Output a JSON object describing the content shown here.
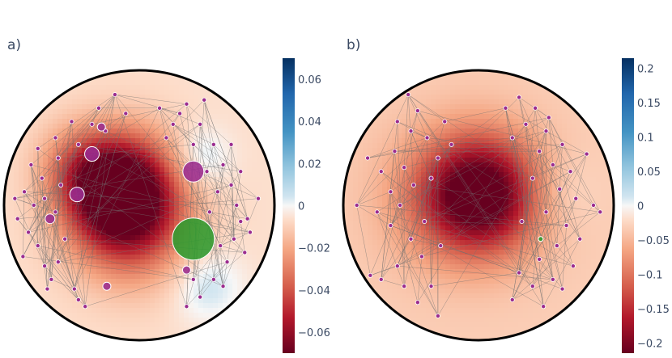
{
  "chart_data": [
    {
      "type": "heatmap",
      "panel_label": "a)",
      "colormap": "RdBu",
      "colorbar": {
        "range": [
          -0.07,
          0.07
        ],
        "ticks": [
          {
            "value": 0.06,
            "label": "0.06"
          },
          {
            "value": 0.04,
            "label": "0.04"
          },
          {
            "value": 0.02,
            "label": "0.02"
          },
          {
            "value": 0,
            "label": "0"
          },
          {
            "value": -0.02,
            "label": "−0.02"
          },
          {
            "value": -0.04,
            "label": "−0.04"
          },
          {
            "value": -0.06,
            "label": "−0.06"
          }
        ]
      },
      "field_background": -0.006,
      "field_blobs": [
        {
          "x": -0.15,
          "y": 0.12,
          "sigma": 0.28,
          "value": -0.078
        },
        {
          "x": -0.05,
          "y": -0.18,
          "sigma": 0.3,
          "value": -0.03
        },
        {
          "x": -0.45,
          "y": 0.3,
          "sigma": 0.2,
          "value": -0.015
        },
        {
          "x": 0.45,
          "y": 0.35,
          "sigma": 0.15,
          "value": 0.012
        },
        {
          "x": 0.5,
          "y": -0.6,
          "sigma": 0.18,
          "value": 0.012
        }
      ],
      "nodes_left": [
        [
          -0.75,
          0.42
        ],
        [
          -0.8,
          0.3
        ],
        [
          -0.72,
          0.2
        ],
        [
          -0.85,
          0.1
        ],
        [
          -0.78,
          0.0
        ],
        [
          -0.9,
          -0.1
        ],
        [
          -0.82,
          -0.2
        ],
        [
          -0.75,
          -0.3
        ],
        [
          -0.86,
          -0.38
        ],
        [
          -0.7,
          -0.45
        ],
        [
          -0.62,
          0.5
        ],
        [
          -0.6,
          0.35
        ],
        [
          -0.58,
          0.15
        ],
        [
          -0.62,
          -0.05
        ],
        [
          -0.55,
          -0.25
        ],
        [
          -0.6,
          -0.42
        ],
        [
          -0.65,
          -0.55
        ],
        [
          -0.48,
          -0.62
        ],
        [
          -0.4,
          -0.75
        ],
        [
          -0.5,
          0.62
        ],
        [
          -0.3,
          0.72
        ],
        [
          -0.18,
          0.82
        ],
        [
          -0.1,
          0.68
        ],
        [
          -0.25,
          0.55
        ],
        [
          -0.45,
          -0.7
        ],
        [
          -0.35,
          0.6
        ],
        [
          -0.68,
          -0.62
        ],
        [
          -0.92,
          0.05
        ],
        [
          -0.7,
          0.05
        ],
        [
          -0.45,
          0.45
        ]
      ],
      "nodes_right": [
        [
          0.15,
          0.72
        ],
        [
          0.25,
          0.6
        ],
        [
          0.35,
          0.75
        ],
        [
          0.45,
          0.6
        ],
        [
          0.55,
          0.45
        ],
        [
          0.62,
          0.3
        ],
        [
          0.68,
          0.15
        ],
        [
          0.72,
          0.0
        ],
        [
          0.75,
          -0.12
        ],
        [
          0.7,
          -0.25
        ],
        [
          0.78,
          -0.35
        ],
        [
          0.65,
          -0.42
        ],
        [
          0.55,
          -0.55
        ],
        [
          0.45,
          -0.68
        ],
        [
          0.35,
          -0.75
        ],
        [
          0.58,
          0.1
        ],
        [
          0.52,
          -0.05
        ],
        [
          0.6,
          -0.3
        ],
        [
          0.4,
          0.45
        ],
        [
          0.3,
          0.68
        ],
        [
          0.88,
          0.05
        ],
        [
          0.82,
          -0.2
        ],
        [
          0.5,
          0.25
        ],
        [
          0.62,
          -0.6
        ],
        [
          0.48,
          0.78
        ],
        [
          0.2,
          0.5
        ],
        [
          0.68,
          0.45
        ],
        [
          0.75,
          0.25
        ],
        [
          0.4,
          -0.55
        ],
        [
          0.8,
          -0.1
        ]
      ],
      "big_nodes": [
        {
          "x": -0.35,
          "y": 0.38,
          "r": 9,
          "color": "#9b2c8e"
        },
        {
          "x": -0.46,
          "y": 0.08,
          "r": 9,
          "color": "#9b2c8e"
        },
        {
          "x": -0.66,
          "y": -0.1,
          "r": 6,
          "color": "#9b2c8e"
        },
        {
          "x": -0.28,
          "y": 0.58,
          "r": 5,
          "color": "#9b2c8e"
        },
        {
          "x": 0.4,
          "y": 0.25,
          "r": 13,
          "color": "#9b2c8e"
        },
        {
          "x": 0.4,
          "y": -0.25,
          "r": 26,
          "color": "#2e9a2e"
        },
        {
          "x": 0.35,
          "y": -0.48,
          "r": 5,
          "color": "#9b2c8e"
        },
        {
          "x": -0.24,
          "y": -0.6,
          "r": 5,
          "color": "#9b2c8e"
        }
      ]
    },
    {
      "type": "heatmap",
      "panel_label": "b)",
      "colormap": "RdBu",
      "colorbar": {
        "range": [
          -0.215,
          0.215
        ],
        "ticks": [
          {
            "value": 0.2,
            "label": "0.2"
          },
          {
            "value": 0.15,
            "label": "0.15"
          },
          {
            "value": 0.1,
            "label": "0.1"
          },
          {
            "value": 0.05,
            "label": "0.05"
          },
          {
            "value": 0,
            "label": "0"
          },
          {
            "value": -0.05,
            "label": "−0.05"
          },
          {
            "value": -0.1,
            "label": "−0.1"
          },
          {
            "value": -0.15,
            "label": "−0.15"
          },
          {
            "value": -0.2,
            "label": "−0.2"
          }
        ]
      },
      "field_background": -0.032,
      "field_blobs": [
        {
          "x": 0.02,
          "y": 0.08,
          "sigma": 0.3,
          "value": -0.2
        },
        {
          "x": -0.25,
          "y": 0.05,
          "sigma": 0.35,
          "value": -0.04
        },
        {
          "x": 0.55,
          "y": 0.1,
          "sigma": 0.2,
          "value": 0.02
        }
      ],
      "nodes_left": [
        [
          -0.6,
          0.62
        ],
        [
          -0.5,
          0.55
        ],
        [
          -0.45,
          0.7
        ],
        [
          -0.38,
          0.5
        ],
        [
          -0.62,
          0.4
        ],
        [
          -0.72,
          0.25
        ],
        [
          -0.55,
          0.28
        ],
        [
          -0.48,
          0.15
        ],
        [
          -0.35,
          0.2
        ],
        [
          -0.58,
          0.0
        ],
        [
          -0.75,
          -0.05
        ],
        [
          -0.65,
          -0.15
        ],
        [
          -0.5,
          -0.25
        ],
        [
          -0.42,
          -0.38
        ],
        [
          -0.6,
          -0.45
        ],
        [
          -0.72,
          -0.55
        ],
        [
          -0.55,
          -0.6
        ],
        [
          -0.45,
          -0.72
        ],
        [
          -0.35,
          -0.6
        ],
        [
          -0.3,
          -0.82
        ],
        [
          -0.25,
          0.62
        ],
        [
          -0.2,
          0.45
        ],
        [
          -0.9,
          0.0
        ],
        [
          -0.8,
          -0.52
        ],
        [
          -0.3,
          0.35
        ],
        [
          -0.28,
          -0.3
        ],
        [
          -0.52,
          0.82
        ],
        [
          -0.65,
          0.1
        ],
        [
          -0.4,
          -0.12
        ],
        [
          -0.82,
          0.35
        ]
      ],
      "nodes_right": [
        [
          0.3,
          0.8
        ],
        [
          0.42,
          0.72
        ],
        [
          0.35,
          0.6
        ],
        [
          0.5,
          0.55
        ],
        [
          0.62,
          0.45
        ],
        [
          0.45,
          0.4
        ],
        [
          0.55,
          0.3
        ],
        [
          0.68,
          0.25
        ],
        [
          0.6,
          0.12
        ],
        [
          0.72,
          0.05
        ],
        [
          0.85,
          0.0
        ],
        [
          0.5,
          -0.05
        ],
        [
          0.65,
          -0.15
        ],
        [
          0.75,
          -0.25
        ],
        [
          0.58,
          -0.3
        ],
        [
          0.45,
          -0.4
        ],
        [
          0.7,
          -0.45
        ],
        [
          0.55,
          -0.55
        ],
        [
          0.4,
          -0.6
        ],
        [
          0.48,
          -0.75
        ],
        [
          0.25,
          -0.7
        ],
        [
          0.3,
          -0.5
        ],
        [
          0.8,
          0.38
        ],
        [
          0.25,
          0.5
        ],
        [
          0.62,
          -0.62
        ],
        [
          0.4,
          0.2
        ],
        [
          0.9,
          -0.05
        ],
        [
          0.32,
          -0.12
        ],
        [
          0.52,
          0.65
        ],
        [
          0.2,
          0.72
        ]
      ],
      "big_nodes": [
        {
          "x": 0.46,
          "y": -0.25,
          "r": 3,
          "color": "#2e9a2e"
        }
      ]
    }
  ]
}
